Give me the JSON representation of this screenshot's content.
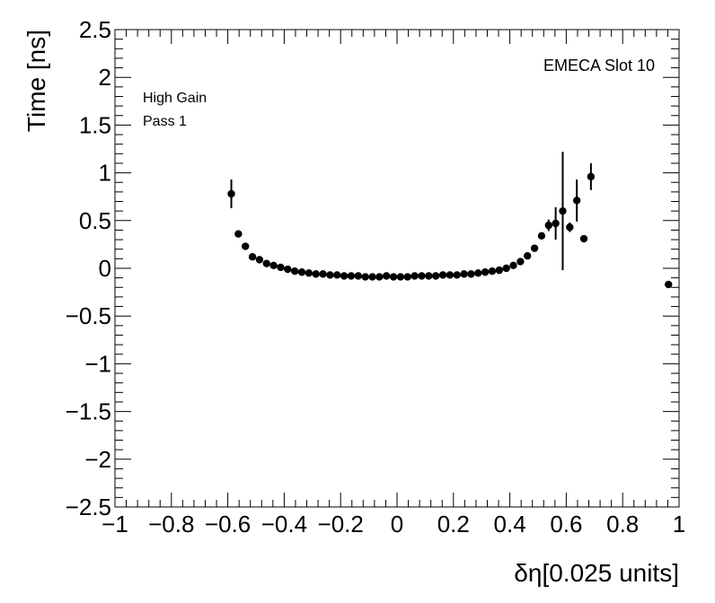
{
  "chart_data": {
    "type": "scatter",
    "xlabel": "δη[0.025 units]",
    "ylabel": "Time [ns]",
    "xlim": [
      -1,
      1
    ],
    "ylim": [
      -2.5,
      2.5
    ],
    "x_ticks": [
      -1,
      -0.8,
      -0.6,
      -0.4,
      -0.2,
      0,
      0.2,
      0.4,
      0.6,
      0.8,
      1
    ],
    "x_tick_labels": [
      "−1",
      "−0.8",
      "−0.6",
      "−0.4",
      "−0.2",
      "0",
      "0.2",
      "0.4",
      "0.6",
      "0.8",
      "1"
    ],
    "y_ticks": [
      -2.5,
      -2,
      -1.5,
      -1,
      -0.5,
      0,
      0.5,
      1,
      1.5,
      2,
      2.5
    ],
    "y_tick_labels": [
      "−2.5",
      "−2",
      "−1.5",
      "−1",
      "−0.5",
      "0",
      "0.5",
      "1",
      "1.5",
      "2",
      "2.5"
    ],
    "annotations": {
      "top_left_line1": "High Gain",
      "top_left_line2": "Pass 1",
      "top_right": "EMECA Slot 10"
    },
    "grid": false,
    "points": [
      {
        "x": -0.5875,
        "y": 0.78,
        "err": 0.15
      },
      {
        "x": -0.5625,
        "y": 0.36,
        "err": 0.03
      },
      {
        "x": -0.5375,
        "y": 0.23,
        "err": 0.02
      },
      {
        "x": -0.5125,
        "y": 0.12,
        "err": 0.01
      },
      {
        "x": -0.4875,
        "y": 0.09,
        "err": 0.0
      },
      {
        "x": -0.4625,
        "y": 0.05,
        "err": 0.0
      },
      {
        "x": -0.4375,
        "y": 0.03,
        "err": 0.0
      },
      {
        "x": -0.4125,
        "y": 0.01,
        "err": 0.0
      },
      {
        "x": -0.3875,
        "y": -0.01,
        "err": 0.0
      },
      {
        "x": -0.3625,
        "y": -0.03,
        "err": 0.0
      },
      {
        "x": -0.3375,
        "y": -0.04,
        "err": 0.0
      },
      {
        "x": -0.3125,
        "y": -0.05,
        "err": 0.0
      },
      {
        "x": -0.2875,
        "y": -0.06,
        "err": 0.0
      },
      {
        "x": -0.2625,
        "y": -0.06,
        "err": 0.0
      },
      {
        "x": -0.2375,
        "y": -0.07,
        "err": 0.0
      },
      {
        "x": -0.2125,
        "y": -0.07,
        "err": 0.0
      },
      {
        "x": -0.1875,
        "y": -0.08,
        "err": 0.0
      },
      {
        "x": -0.1625,
        "y": -0.08,
        "err": 0.0
      },
      {
        "x": -0.1375,
        "y": -0.08,
        "err": 0.0
      },
      {
        "x": -0.1125,
        "y": -0.09,
        "err": 0.0
      },
      {
        "x": -0.0875,
        "y": -0.09,
        "err": 0.0
      },
      {
        "x": -0.0625,
        "y": -0.09,
        "err": 0.0
      },
      {
        "x": -0.0375,
        "y": -0.08,
        "err": 0.0
      },
      {
        "x": -0.0125,
        "y": -0.09,
        "err": 0.0
      },
      {
        "x": 0.0125,
        "y": -0.09,
        "err": 0.0
      },
      {
        "x": 0.0375,
        "y": -0.09,
        "err": 0.0
      },
      {
        "x": 0.0625,
        "y": -0.08,
        "err": 0.0
      },
      {
        "x": 0.0875,
        "y": -0.08,
        "err": 0.0
      },
      {
        "x": 0.1125,
        "y": -0.08,
        "err": 0.0
      },
      {
        "x": 0.1375,
        "y": -0.08,
        "err": 0.0
      },
      {
        "x": 0.1625,
        "y": -0.07,
        "err": 0.0
      },
      {
        "x": 0.1875,
        "y": -0.07,
        "err": 0.0
      },
      {
        "x": 0.2125,
        "y": -0.07,
        "err": 0.0
      },
      {
        "x": 0.2375,
        "y": -0.06,
        "err": 0.0
      },
      {
        "x": 0.2625,
        "y": -0.06,
        "err": 0.0
      },
      {
        "x": 0.2875,
        "y": -0.05,
        "err": 0.0
      },
      {
        "x": 0.3125,
        "y": -0.04,
        "err": 0.0
      },
      {
        "x": 0.3375,
        "y": -0.03,
        "err": 0.0
      },
      {
        "x": 0.3625,
        "y": -0.02,
        "err": 0.0
      },
      {
        "x": 0.3875,
        "y": 0.0,
        "err": 0.0
      },
      {
        "x": 0.4125,
        "y": 0.03,
        "err": 0.0
      },
      {
        "x": 0.4375,
        "y": 0.07,
        "err": 0.0
      },
      {
        "x": 0.4625,
        "y": 0.13,
        "err": 0.01
      },
      {
        "x": 0.4875,
        "y": 0.21,
        "err": 0.02
      },
      {
        "x": 0.5125,
        "y": 0.34,
        "err": 0.03
      },
      {
        "x": 0.5375,
        "y": 0.45,
        "err": 0.06
      },
      {
        "x": 0.5625,
        "y": 0.47,
        "err": 0.17
      },
      {
        "x": 0.5875,
        "y": 0.6,
        "err": 0.62
      },
      {
        "x": 0.6125,
        "y": 0.43,
        "err": 0.05
      },
      {
        "x": 0.6375,
        "y": 0.71,
        "err": 0.22
      },
      {
        "x": 0.6625,
        "y": 0.31,
        "err": 0.0
      },
      {
        "x": 0.6875,
        "y": 0.96,
        "err": 0.14
      },
      {
        "x": 0.9625,
        "y": -0.17,
        "err": 0.0
      }
    ]
  }
}
